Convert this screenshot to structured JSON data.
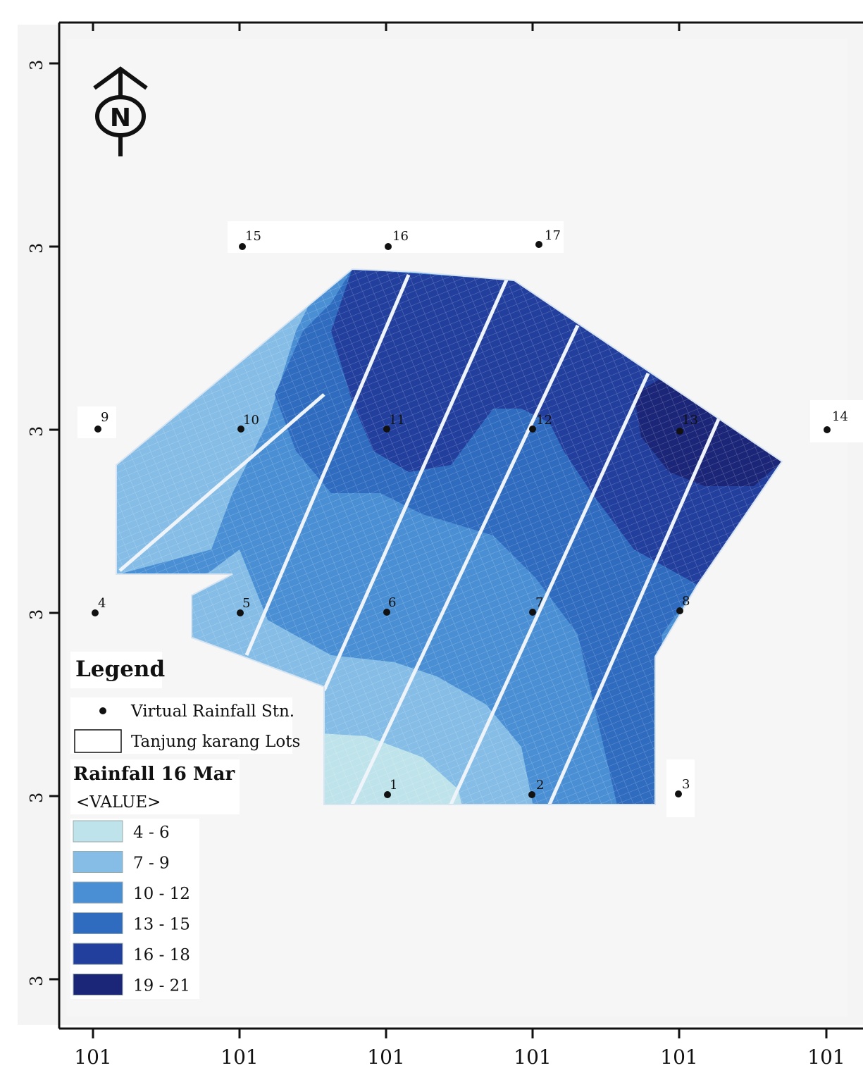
{
  "map": {
    "y_tick_labels": [
      "3",
      "3",
      "3",
      "3",
      "3",
      "3"
    ],
    "x_tick_labels": [
      "101",
      "101",
      "101",
      "101",
      "101",
      "101"
    ],
    "north_arrow": {
      "icon": "north-arrow-icon",
      "letter": "N"
    },
    "stations": [
      {
        "id": "1",
        "label": "1"
      },
      {
        "id": "2",
        "label": "2"
      },
      {
        "id": "3",
        "label": "3"
      },
      {
        "id": "4",
        "label": "4"
      },
      {
        "id": "5",
        "label": "5"
      },
      {
        "id": "6",
        "label": "6"
      },
      {
        "id": "7",
        "label": "7"
      },
      {
        "id": "8",
        "label": "8"
      },
      {
        "id": "9",
        "label": "9"
      },
      {
        "id": "10",
        "label": "10"
      },
      {
        "id": "11",
        "label": "11"
      },
      {
        "id": "12",
        "label": "12"
      },
      {
        "id": "13",
        "label": "13"
      },
      {
        "id": "14",
        "label": "14"
      },
      {
        "id": "15",
        "label": "15"
      },
      {
        "id": "16",
        "label": "16"
      },
      {
        "id": "17",
        "label": "17"
      }
    ]
  },
  "legend": {
    "title": "Legend",
    "station_label": "Virtual Rainfall Stn.",
    "lots_label": "Tanjung karang Lots",
    "rainfall_title": "Rainfall 16 Mar",
    "value_label": "<VALUE>",
    "classes": [
      {
        "label": "4 - 6",
        "color": "#bfe3ea"
      },
      {
        "label": "7 - 9",
        "color": "#85bde6"
      },
      {
        "label": "10 - 12",
        "color": "#4a8fd4"
      },
      {
        "label": "13 - 15",
        "color": "#2f6bbf"
      },
      {
        "label": "16 - 18",
        "color": "#233f9e"
      },
      {
        "label": "19 - 21",
        "color": "#1c2678"
      }
    ]
  }
}
